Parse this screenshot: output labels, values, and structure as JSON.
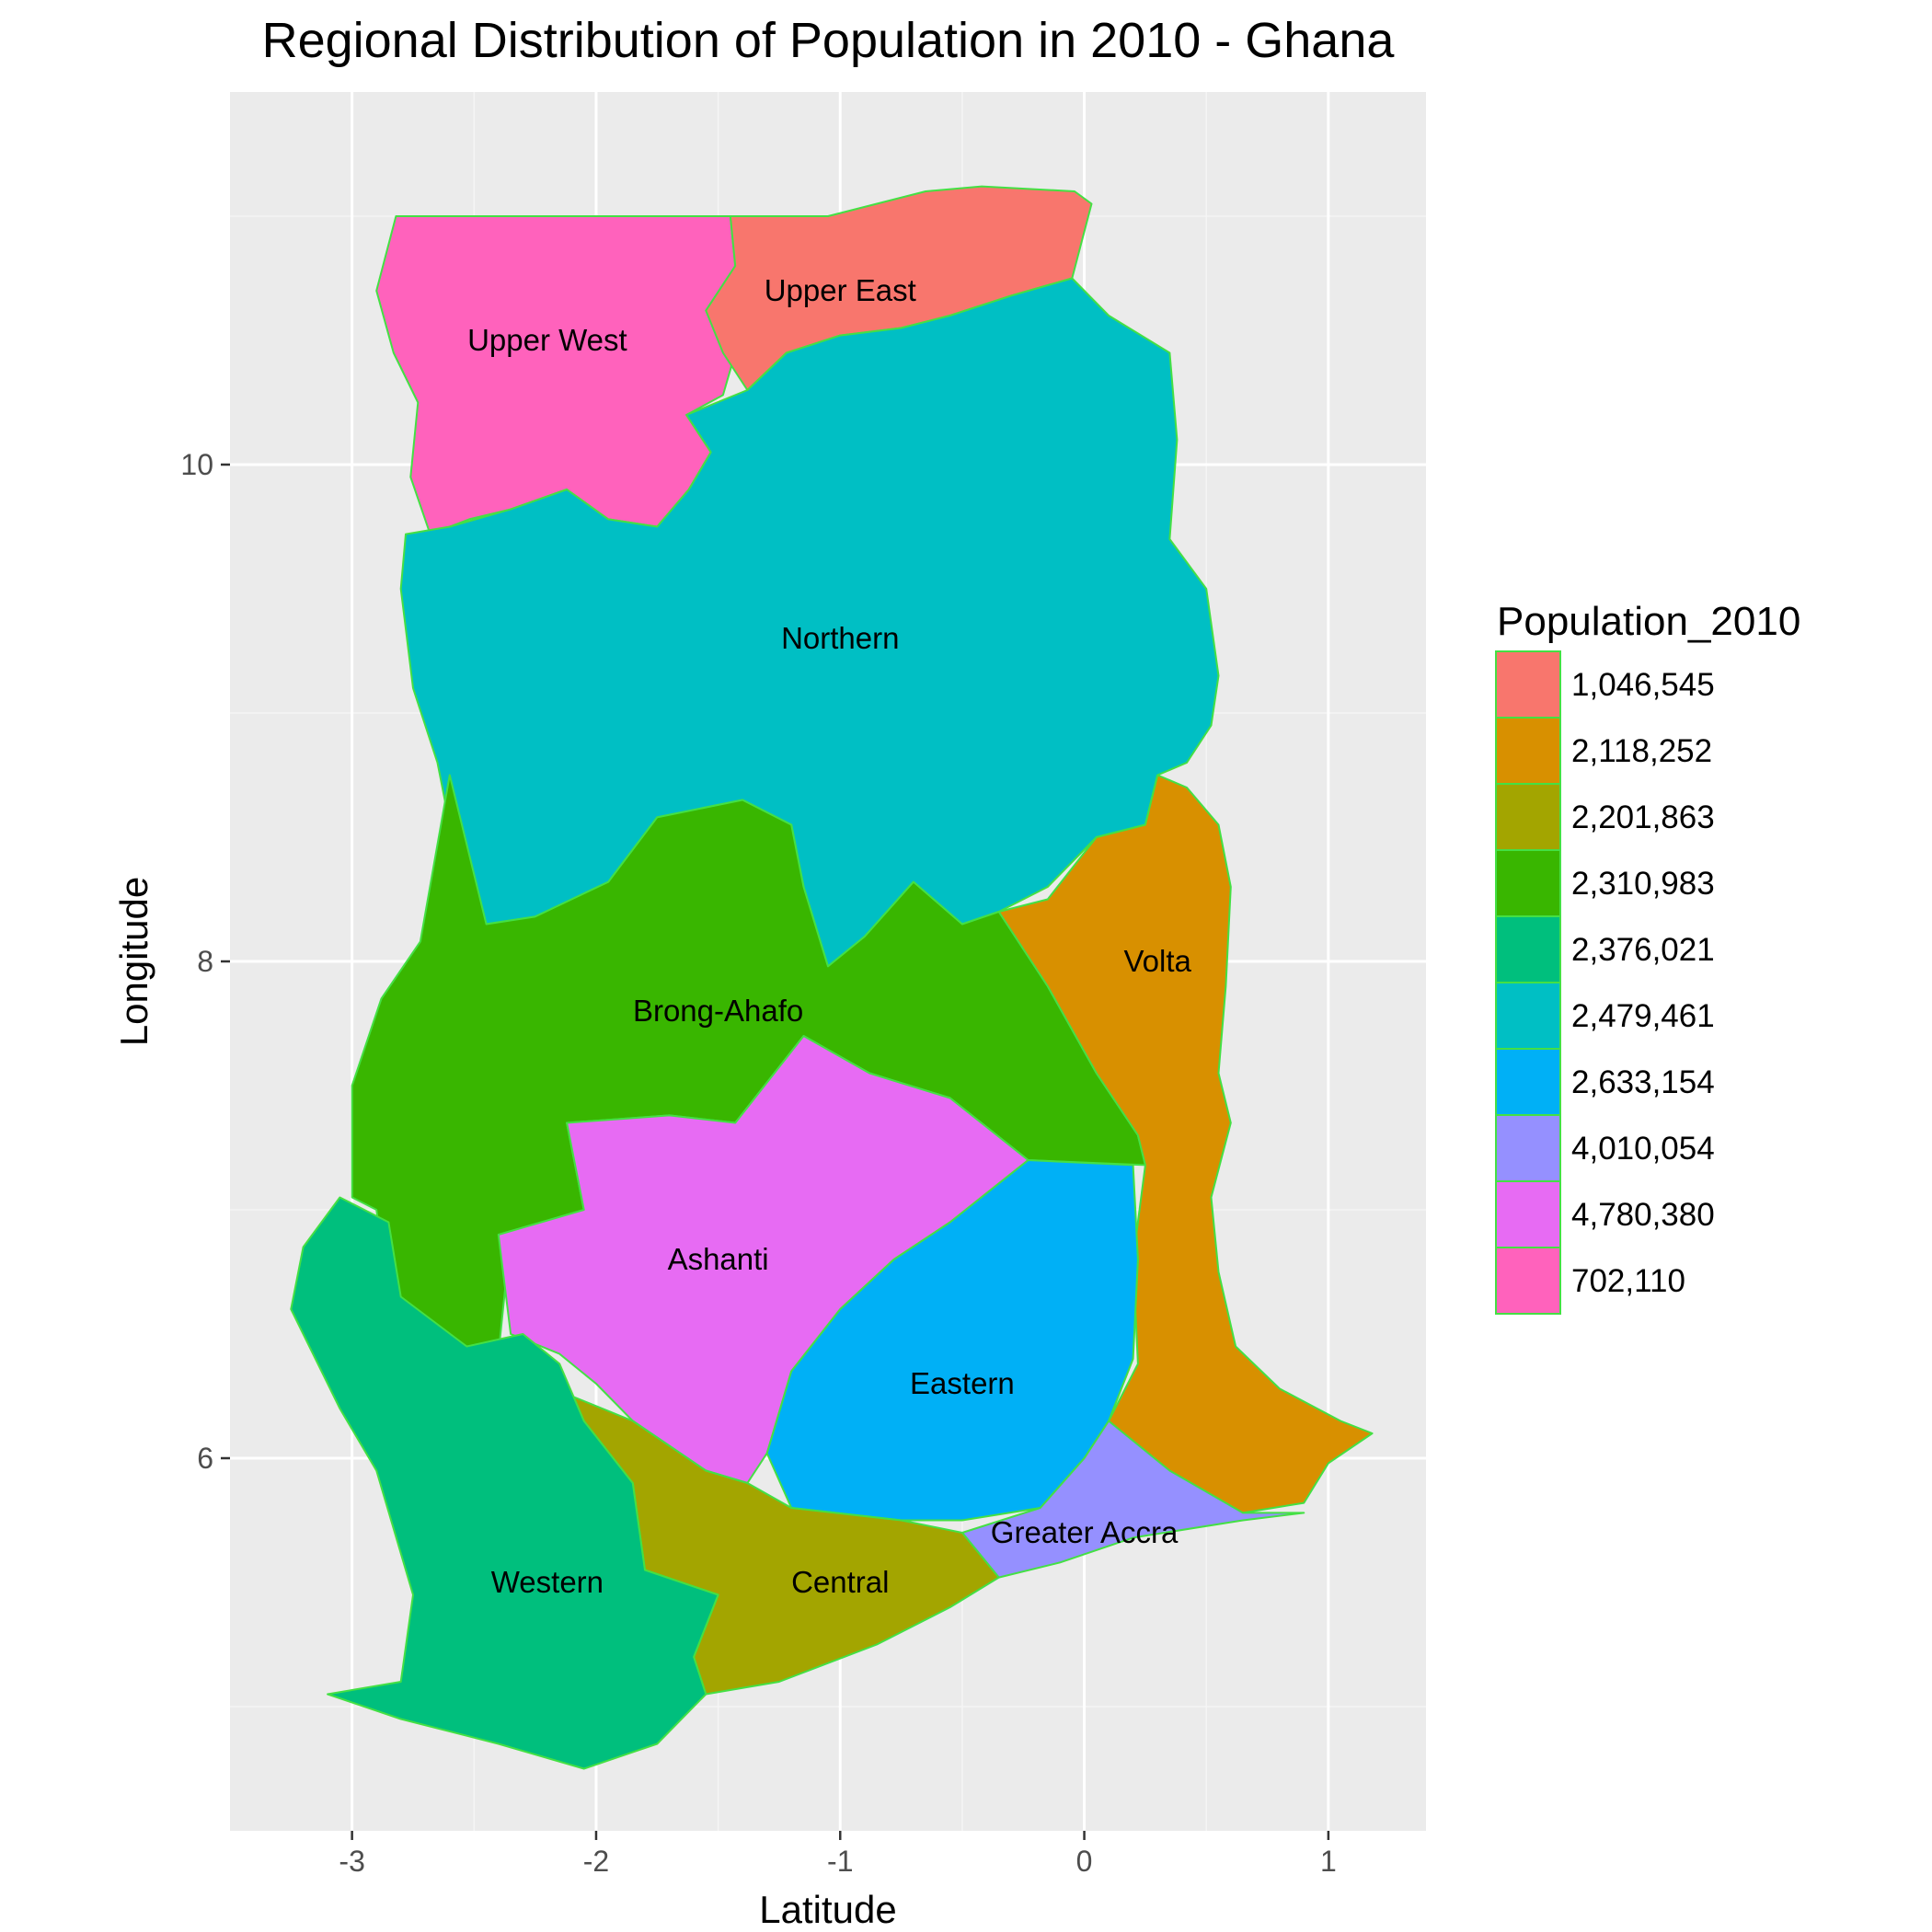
{
  "chart_data": {
    "type": "map",
    "title": "Regional Distribution of Population in 2010 - Ghana",
    "xlabel": "Latitude",
    "ylabel": "Longitude",
    "xlim": [
      -3.5,
      1.4
    ],
    "ylim": [
      4.5,
      11.5
    ],
    "x_ticks": [
      {
        "value": -3,
        "label": "-3"
      },
      {
        "value": -2,
        "label": "-2"
      },
      {
        "value": -1,
        "label": "-1"
      },
      {
        "value": 0,
        "label": "0"
      },
      {
        "value": 1,
        "label": "1"
      }
    ],
    "y_ticks": [
      {
        "value": 6,
        "label": "6"
      },
      {
        "value": 8,
        "label": "8"
      },
      {
        "value": 10,
        "label": "10"
      }
    ],
    "grid": true,
    "background": "#ebebeb",
    "border_color": "#44e044",
    "legend": {
      "title": "Population_2010",
      "placement": "right",
      "entries": [
        {
          "label": "1,046,545",
          "color": "#f8766d"
        },
        {
          "label": "2,118,252",
          "color": "#d89000"
        },
        {
          "label": "2,201,863",
          "color": "#a3a500"
        },
        {
          "label": "2,310,983",
          "color": "#39b600"
        },
        {
          "label": "2,376,021",
          "color": "#00bf7d"
        },
        {
          "label": "2,479,461",
          "color": "#00bfc4"
        },
        {
          "label": "2,633,154",
          "color": "#00b0f6"
        },
        {
          "label": "4,010,054",
          "color": "#9590ff"
        },
        {
          "label": "4,780,380",
          "color": "#e76bf3"
        },
        {
          "label": "702,110",
          "color": "#ff62bc"
        }
      ]
    },
    "regions": [
      {
        "name": "Upper West",
        "population": "702,110",
        "color": "#ff62bc",
        "label_at": [
          -2.2,
          10.5
        ],
        "outline": [
          [
            -2.82,
            11.0
          ],
          [
            -1.45,
            11.0
          ],
          [
            -1.43,
            10.8
          ],
          [
            -1.55,
            10.62
          ],
          [
            -1.43,
            10.45
          ],
          [
            -1.48,
            10.28
          ],
          [
            -1.63,
            10.2
          ],
          [
            -1.53,
            10.05
          ],
          [
            -1.62,
            9.9
          ],
          [
            -1.75,
            9.75
          ],
          [
            -1.95,
            9.78
          ],
          [
            -2.12,
            9.9
          ],
          [
            -2.35,
            9.82
          ],
          [
            -2.52,
            9.78
          ],
          [
            -2.68,
            9.72
          ],
          [
            -2.76,
            9.95
          ],
          [
            -2.73,
            10.25
          ],
          [
            -2.83,
            10.45
          ],
          [
            -2.9,
            10.7
          ]
        ]
      },
      {
        "name": "Upper East",
        "population": "1,046,545",
        "color": "#f8766d",
        "label_at": [
          -1.0,
          10.7
        ],
        "outline": [
          [
            -1.45,
            11.0
          ],
          [
            -1.05,
            11.0
          ],
          [
            -0.65,
            11.1
          ],
          [
            -0.42,
            11.12
          ],
          [
            -0.04,
            11.1
          ],
          [
            0.03,
            11.05
          ],
          [
            -0.05,
            10.75
          ],
          [
            -0.3,
            10.68
          ],
          [
            -0.55,
            10.6
          ],
          [
            -0.75,
            10.55
          ],
          [
            -1.0,
            10.52
          ],
          [
            -1.22,
            10.45
          ],
          [
            -1.38,
            10.3
          ],
          [
            -1.48,
            10.45
          ],
          [
            -1.55,
            10.62
          ],
          [
            -1.43,
            10.8
          ]
        ]
      },
      {
        "name": "Northern",
        "population": "2,479,461",
        "color": "#00bfc4",
        "label_at": [
          -1.0,
          9.3
        ],
        "outline": [
          [
            -1.38,
            10.3
          ],
          [
            -1.22,
            10.45
          ],
          [
            -1.0,
            10.52
          ],
          [
            -0.75,
            10.55
          ],
          [
            -0.55,
            10.6
          ],
          [
            -0.3,
            10.68
          ],
          [
            -0.05,
            10.75
          ],
          [
            0.1,
            10.6
          ],
          [
            0.35,
            10.45
          ],
          [
            0.38,
            10.1
          ],
          [
            0.35,
            9.7
          ],
          [
            0.5,
            9.5
          ],
          [
            0.55,
            9.15
          ],
          [
            0.52,
            8.95
          ],
          [
            0.42,
            8.8
          ],
          [
            0.3,
            8.75
          ],
          [
            0.25,
            8.55
          ],
          [
            0.05,
            8.5
          ],
          [
            -0.15,
            8.3
          ],
          [
            -0.35,
            8.2
          ],
          [
            -0.5,
            8.15
          ],
          [
            -0.7,
            8.32
          ],
          [
            -0.9,
            8.1
          ],
          [
            -1.05,
            7.98
          ],
          [
            -1.15,
            8.3
          ],
          [
            -1.2,
            8.55
          ],
          [
            -1.4,
            8.65
          ],
          [
            -1.75,
            8.58
          ],
          [
            -1.95,
            8.32
          ],
          [
            -2.25,
            8.18
          ],
          [
            -2.45,
            8.15
          ],
          [
            -2.6,
            8.55
          ],
          [
            -2.65,
            8.8
          ],
          [
            -2.75,
            9.1
          ],
          [
            -2.8,
            9.5
          ],
          [
            -2.78,
            9.72
          ],
          [
            -2.6,
            9.75
          ],
          [
            -2.35,
            9.82
          ],
          [
            -2.12,
            9.9
          ],
          [
            -1.95,
            9.78
          ],
          [
            -1.75,
            9.75
          ],
          [
            -1.62,
            9.9
          ],
          [
            -1.53,
            10.05
          ],
          [
            -1.63,
            10.2
          ]
        ]
      },
      {
        "name": "Brong-Ahafo",
        "population": "2,310,983",
        "color": "#39b600",
        "label_at": [
          -1.5,
          7.8
        ],
        "outline": [
          [
            -2.6,
            8.75
          ],
          [
            -2.45,
            8.15
          ],
          [
            -2.25,
            8.18
          ],
          [
            -1.95,
            8.32
          ],
          [
            -1.75,
            8.58
          ],
          [
            -1.4,
            8.65
          ],
          [
            -1.2,
            8.55
          ],
          [
            -1.15,
            8.3
          ],
          [
            -1.05,
            7.98
          ],
          [
            -0.9,
            8.1
          ],
          [
            -0.7,
            8.32
          ],
          [
            -0.5,
            8.15
          ],
          [
            -0.35,
            8.2
          ],
          [
            -0.15,
            7.9
          ],
          [
            0.05,
            7.55
          ],
          [
            0.22,
            7.3
          ],
          [
            0.25,
            7.18
          ],
          [
            -0.23,
            7.2
          ],
          [
            -0.55,
            7.45
          ],
          [
            -0.88,
            7.55
          ],
          [
            -1.15,
            7.7
          ],
          [
            -1.43,
            7.35
          ],
          [
            -1.7,
            7.38
          ],
          [
            -2.12,
            7.35
          ],
          [
            -2.05,
            7.0
          ],
          [
            -2.35,
            6.9
          ],
          [
            -2.4,
            6.42
          ],
          [
            -2.53,
            6.45
          ],
          [
            -2.85,
            6.65
          ],
          [
            -2.9,
            7.0
          ],
          [
            -3.0,
            7.05
          ],
          [
            -3.0,
            7.5
          ],
          [
            -2.88,
            7.85
          ],
          [
            -2.72,
            8.08
          ]
        ]
      },
      {
        "name": "Volta",
        "population": "2,118,252",
        "color": "#d89000",
        "label_at": [
          0.3,
          8.0
        ],
        "outline": [
          [
            0.3,
            8.75
          ],
          [
            0.42,
            8.7
          ],
          [
            0.55,
            8.55
          ],
          [
            0.6,
            8.3
          ],
          [
            0.58,
            7.9
          ],
          [
            0.55,
            7.55
          ],
          [
            0.6,
            7.35
          ],
          [
            0.52,
            7.05
          ],
          [
            0.55,
            6.75
          ],
          [
            0.62,
            6.45
          ],
          [
            0.8,
            6.28
          ],
          [
            1.05,
            6.15
          ],
          [
            1.18,
            6.1
          ],
          [
            1.0,
            5.98
          ],
          [
            0.9,
            5.82
          ],
          [
            0.65,
            5.78
          ],
          [
            0.35,
            5.88
          ],
          [
            0.05,
            5.95
          ],
          [
            0.1,
            6.15
          ],
          [
            0.22,
            6.38
          ],
          [
            0.2,
            6.8
          ],
          [
            0.25,
            7.18
          ],
          [
            0.22,
            7.3
          ],
          [
            0.05,
            7.55
          ],
          [
            -0.15,
            7.9
          ],
          [
            -0.35,
            8.2
          ],
          [
            -0.15,
            8.25
          ],
          [
            0.05,
            8.5
          ],
          [
            0.25,
            8.55
          ]
        ]
      },
      {
        "name": "Ashanti",
        "population": "4,780,380",
        "color": "#e76bf3",
        "label_at": [
          -1.5,
          6.8
        ],
        "outline": [
          [
            -2.12,
            7.35
          ],
          [
            -1.7,
            7.38
          ],
          [
            -1.43,
            7.35
          ],
          [
            -1.15,
            7.7
          ],
          [
            -0.88,
            7.55
          ],
          [
            -0.55,
            7.45
          ],
          [
            -0.23,
            7.2
          ],
          [
            -0.55,
            6.95
          ],
          [
            -0.78,
            6.8
          ],
          [
            -1.0,
            6.6
          ],
          [
            -1.2,
            6.35
          ],
          [
            -1.3,
            6.02
          ],
          [
            -1.38,
            5.9
          ],
          [
            -1.55,
            5.95
          ],
          [
            -1.85,
            6.15
          ],
          [
            -2.0,
            6.3
          ],
          [
            -2.15,
            6.42
          ],
          [
            -2.35,
            6.5
          ],
          [
            -2.4,
            6.9
          ],
          [
            -2.05,
            7.0
          ]
        ]
      },
      {
        "name": "Eastern",
        "population": "2,633,154",
        "color": "#00b0f6",
        "label_at": [
          -0.5,
          6.3
        ],
        "outline": [
          [
            -0.23,
            7.2
          ],
          [
            0.2,
            7.18
          ],
          [
            0.22,
            6.8
          ],
          [
            0.2,
            6.4
          ],
          [
            0.1,
            6.15
          ],
          [
            0.0,
            6.0
          ],
          [
            -0.18,
            5.8
          ],
          [
            -0.5,
            5.75
          ],
          [
            -0.75,
            5.75
          ],
          [
            -1.2,
            5.8
          ],
          [
            -1.3,
            6.02
          ],
          [
            -1.2,
            6.35
          ],
          [
            -1.0,
            6.6
          ],
          [
            -0.78,
            6.8
          ],
          [
            -0.55,
            6.95
          ]
        ]
      },
      {
        "name": "Greater Accra",
        "population": "4,010,054",
        "color": "#9590ff",
        "label_at": [
          0.0,
          5.7
        ],
        "outline": [
          [
            0.1,
            6.15
          ],
          [
            0.35,
            5.95
          ],
          [
            0.65,
            5.78
          ],
          [
            0.9,
            5.78
          ],
          [
            0.65,
            5.75
          ],
          [
            0.2,
            5.68
          ],
          [
            -0.1,
            5.58
          ],
          [
            -0.35,
            5.52
          ],
          [
            -0.5,
            5.7
          ],
          [
            -0.18,
            5.8
          ],
          [
            0.0,
            6.0
          ]
        ]
      },
      {
        "name": "Central",
        "population": "2,201,863",
        "color": "#a3a500",
        "label_at": [
          -1.0,
          5.5
        ],
        "outline": [
          [
            -2.1,
            6.25
          ],
          [
            -1.85,
            6.15
          ],
          [
            -1.55,
            5.95
          ],
          [
            -1.38,
            5.9
          ],
          [
            -1.2,
            5.8
          ],
          [
            -0.75,
            5.75
          ],
          [
            -0.5,
            5.7
          ],
          [
            -0.35,
            5.52
          ],
          [
            -0.55,
            5.4
          ],
          [
            -0.85,
            5.25
          ],
          [
            -1.25,
            5.1
          ],
          [
            -1.55,
            5.05
          ],
          [
            -1.6,
            5.2
          ],
          [
            -1.5,
            5.45
          ],
          [
            -1.8,
            5.55
          ],
          [
            -1.85,
            5.9
          ],
          [
            -2.05,
            6.05
          ]
        ]
      },
      {
        "name": "Western",
        "population": "2,376,021",
        "color": "#00bf7d",
        "label_at": [
          -2.2,
          5.5
        ],
        "outline": [
          [
            -3.05,
            7.05
          ],
          [
            -2.85,
            6.95
          ],
          [
            -2.8,
            6.65
          ],
          [
            -2.53,
            6.45
          ],
          [
            -2.3,
            6.5
          ],
          [
            -2.15,
            6.38
          ],
          [
            -2.05,
            6.15
          ],
          [
            -1.85,
            5.9
          ],
          [
            -1.8,
            5.55
          ],
          [
            -1.5,
            5.45
          ],
          [
            -1.6,
            5.2
          ],
          [
            -1.55,
            5.05
          ],
          [
            -1.75,
            4.85
          ],
          [
            -2.05,
            4.75
          ],
          [
            -2.4,
            4.85
          ],
          [
            -2.8,
            4.95
          ],
          [
            -3.1,
            5.05
          ],
          [
            -2.8,
            5.1
          ],
          [
            -2.75,
            5.45
          ],
          [
            -2.9,
            5.95
          ],
          [
            -3.05,
            6.2
          ],
          [
            -3.25,
            6.6
          ],
          [
            -3.2,
            6.85
          ]
        ]
      }
    ]
  }
}
